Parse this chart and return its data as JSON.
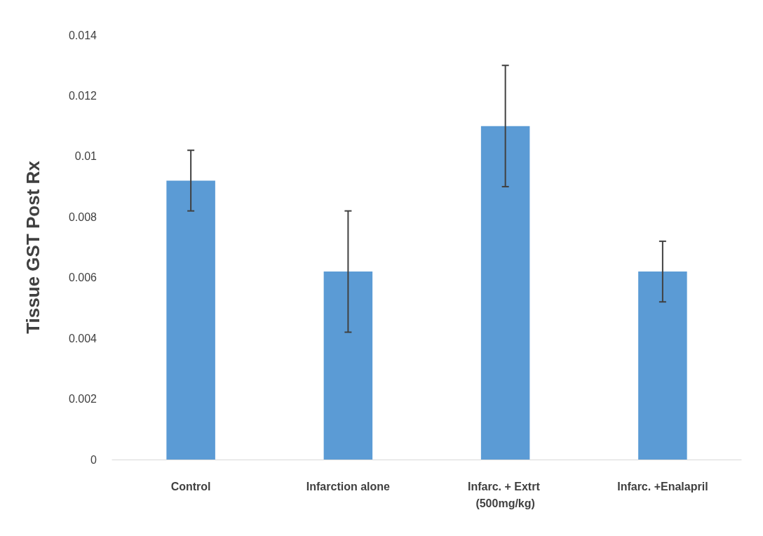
{
  "chart_data": {
    "type": "bar",
    "ylabel": "Tissue GST Post Rx",
    "categories": [
      "Control",
      "Infarction alone",
      "Infarc. + Extrt (500mg/kg)",
      "Infarc. +Enalapril"
    ],
    "values": [
      0.0092,
      0.0062,
      0.011,
      0.0062
    ],
    "errors": [
      0.001,
      0.002,
      0.002,
      0.001
    ],
    "color": "#5b9bd5",
    "ylim": [
      0,
      0.014
    ],
    "yticks": [
      0,
      0.002,
      0.004,
      0.006,
      0.008,
      0.01,
      0.012,
      0.014
    ],
    "grid": false
  }
}
